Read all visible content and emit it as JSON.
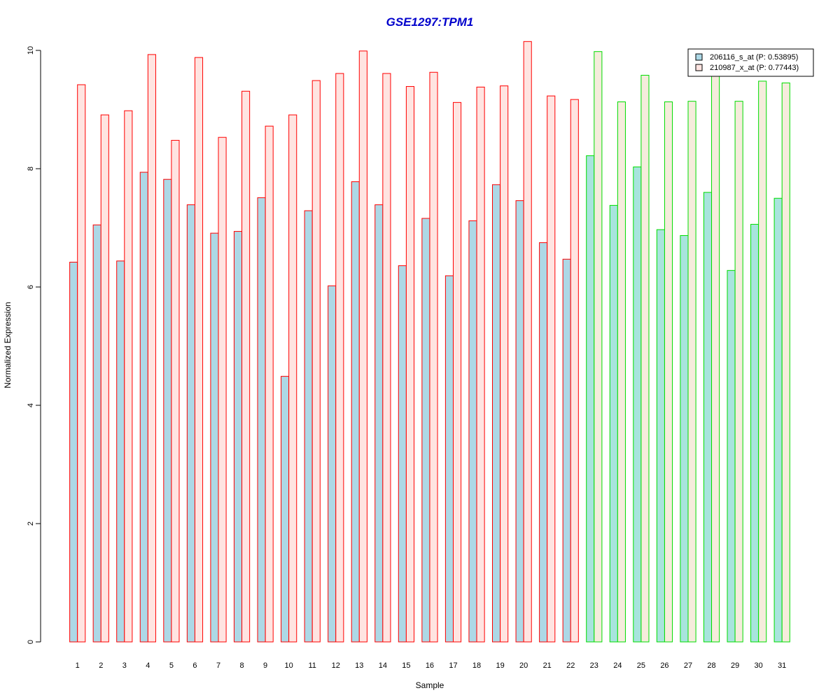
{
  "chart_data": {
    "type": "bar",
    "title": "GSE1297:TPM1",
    "xlabel": "Sample",
    "ylabel": "Normalized Expression",
    "ylim": [
      0,
      10
    ],
    "yticks": [
      0,
      2,
      4,
      6,
      8,
      10
    ],
    "grid": false,
    "legend_position": "top-right",
    "categories": [
      "1",
      "2",
      "3",
      "4",
      "5",
      "6",
      "7",
      "8",
      "9",
      "10",
      "11",
      "12",
      "13",
      "14",
      "15",
      "16",
      "17",
      "18",
      "19",
      "20",
      "21",
      "22",
      "23",
      "24",
      "25",
      "26",
      "27",
      "28",
      "29",
      "30",
      "31"
    ],
    "series": [
      {
        "name": "206116_s_at (P: 0.53895)",
        "values": [
          6.42,
          7.05,
          6.44,
          7.94,
          7.82,
          7.39,
          6.91,
          6.94,
          7.51,
          4.49,
          7.29,
          6.02,
          7.78,
          7.39,
          6.36,
          7.16,
          6.19,
          7.12,
          7.73,
          7.46,
          6.75,
          6.47,
          8.22,
          7.38,
          8.03,
          6.97,
          6.87,
          7.6,
          6.28,
          7.06,
          7.5
        ]
      },
      {
        "name": "210987_x_at (P: 0.77443)",
        "values": [
          9.42,
          8.91,
          8.98,
          9.93,
          8.48,
          9.88,
          8.53,
          9.31,
          8.72,
          8.91,
          9.49,
          9.61,
          9.99,
          9.61,
          9.39,
          9.63,
          9.12,
          9.38,
          9.4,
          10.15,
          9.23,
          9.17,
          9.98,
          9.13,
          9.58,
          9.13,
          9.14,
          9.62,
          9.14,
          9.48,
          9.45
        ]
      }
    ],
    "groups": [
      {
        "samples": 22,
        "border_color": "#ff0000"
      },
      {
        "samples": 9,
        "border_color": "#00dd00"
      }
    ],
    "colors": {
      "title": "#0000cc",
      "group1_series1_fill": "#add8e6",
      "group1_series2_fill": "#ffe4e1",
      "group2_series1_fill": "#a8e4dd",
      "group2_series2_fill": "#f5ecdc",
      "legend_series1_fill": "#add8e6",
      "legend_series2_fill": "#ffe4e1"
    }
  }
}
